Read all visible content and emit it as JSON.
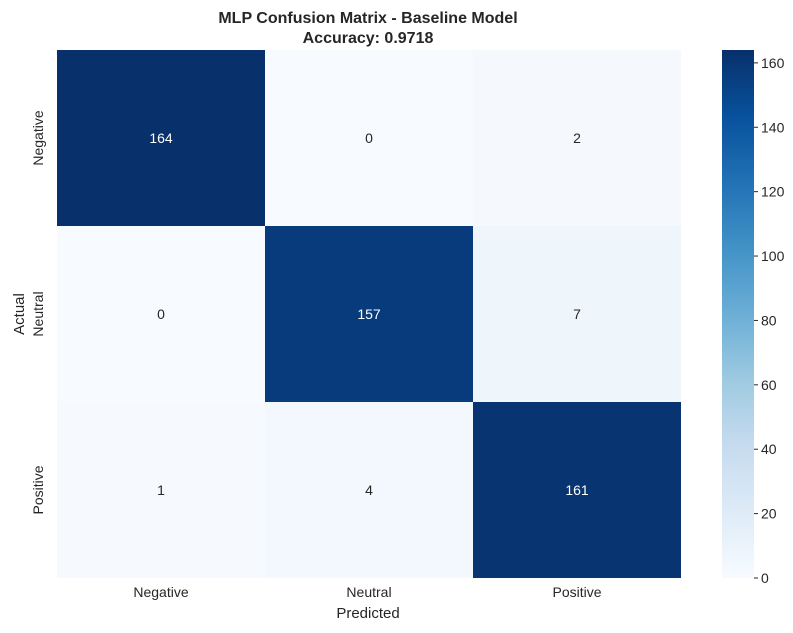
{
  "chart_data": {
    "type": "heatmap",
    "title": "MLP Confusion Matrix - Baseline Model",
    "subtitle": "Accuracy: 0.9718",
    "xlabel": "Predicted",
    "ylabel": "Actual",
    "x_categories": [
      "Negative",
      "Neutral",
      "Positive"
    ],
    "y_categories": [
      "Negative",
      "Neutral",
      "Positive"
    ],
    "matrix": [
      [
        164,
        0,
        2
      ],
      [
        0,
        157,
        7
      ],
      [
        1,
        4,
        161
      ]
    ],
    "colormap": "Blues",
    "colorbar": {
      "range": [
        0,
        164
      ],
      "ticks": [
        0,
        20,
        40,
        60,
        80,
        100,
        120,
        140,
        160
      ]
    },
    "colors": {
      "low": "#f7fbff",
      "high": "#08306b",
      "text_dark": "#262626",
      "text_light": "#ffffff"
    }
  }
}
